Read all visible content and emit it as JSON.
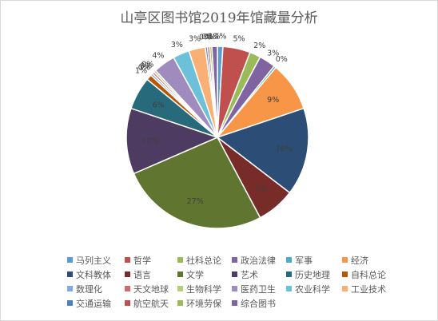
{
  "chart_data": {
    "type": "pie",
    "title": "山亭区图书馆2019年馆藏量分析",
    "legend_position": "bottom",
    "unit": "%",
    "series": [
      {
        "name": "马列主义",
        "value": 1,
        "label": "1%",
        "color": "#5b9bd5"
      },
      {
        "name": "哲学",
        "value": 5,
        "label": "5%",
        "color": "#c0504d"
      },
      {
        "name": "社科总论",
        "value": 2,
        "label": "2%",
        "color": "#9bbb59"
      },
      {
        "name": "政治法律",
        "value": 3,
        "label": "3%",
        "color": "#8064a2"
      },
      {
        "name": "军事",
        "value": 0,
        "label": "0%",
        "color": "#4bacc6"
      },
      {
        "name": "经济",
        "value": 9,
        "label": "9%",
        "color": "#f79646"
      },
      {
        "name": "文科教体",
        "value": 16,
        "label": "16%",
        "color": "#2c4d75"
      },
      {
        "name": "语言",
        "value": 7,
        "label": "7%",
        "color": "#772c2a"
      },
      {
        "name": "文学",
        "value": 27,
        "label": "27%",
        "color": "#5f7530"
      },
      {
        "name": "艺术",
        "value": 12,
        "label": "12%",
        "color": "#4d3b62"
      },
      {
        "name": "历史地理",
        "value": 6,
        "label": "6%",
        "color": "#276a7c"
      },
      {
        "name": "自科总论",
        "value": 1,
        "label": "1%",
        "color": "#b65708"
      },
      {
        "name": "数理化",
        "value": 0,
        "label": "0%",
        "color": "#7cafdd"
      },
      {
        "name": "天文地球",
        "value": 0,
        "label": "0%",
        "color": "#d16b6b"
      },
      {
        "name": "生物科学",
        "value": 0,
        "label": "0%",
        "color": "#b3cd7e"
      },
      {
        "name": "医药卫生",
        "value": 4,
        "label": "4%",
        "color": "#a08bbf"
      },
      {
        "name": "农业科学",
        "value": 3,
        "label": "3%",
        "color": "#6cc1d8"
      },
      {
        "name": "工业技术",
        "value": 3,
        "label": "3%",
        "color": "#f9b074"
      },
      {
        "name": "交通运输",
        "value": 0,
        "label": "0%",
        "color": "#4f81bd"
      },
      {
        "name": "航空航天",
        "value": 0,
        "label": "0%",
        "color": "#c0504d"
      },
      {
        "name": "环境劳保",
        "value": 0,
        "label": "0%",
        "color": "#9bbb59"
      },
      {
        "name": "综合图书",
        "value": 1,
        "label": "1%",
        "color": "#8064a2"
      }
    ]
  }
}
